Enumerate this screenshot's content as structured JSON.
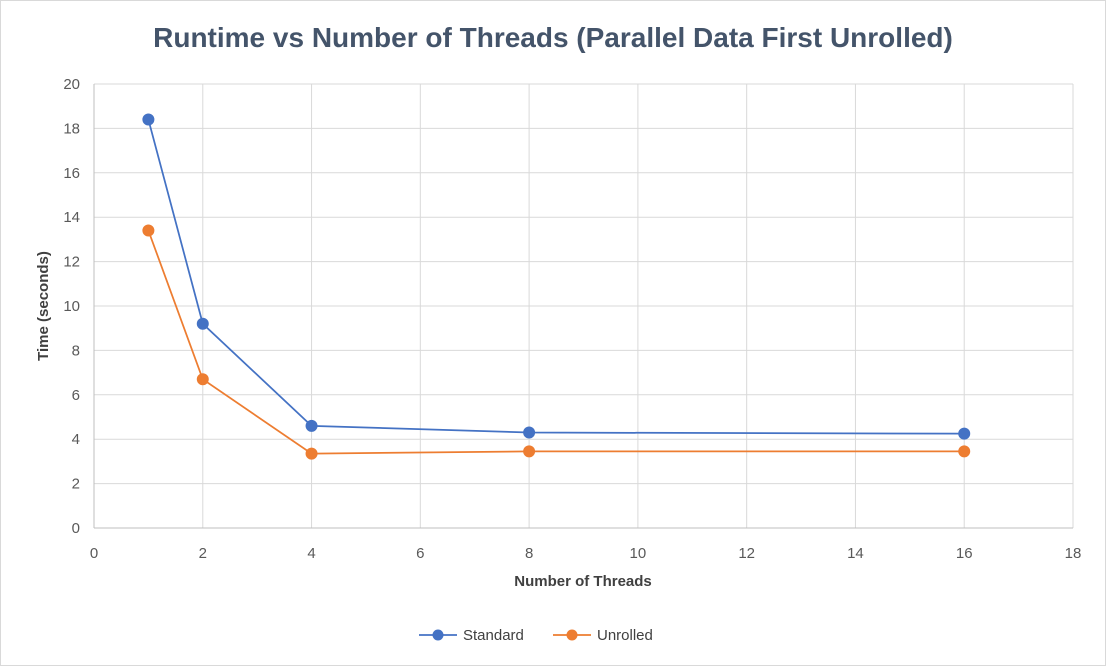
{
  "chart_data": {
    "type": "scatter",
    "title": "Runtime vs Number of Threads (Parallel Data First Unrolled)",
    "xlabel": "Number of Threads",
    "ylabel": "Time (seconds)",
    "xlim": [
      0,
      18
    ],
    "ylim": [
      0,
      20
    ],
    "x_ticks": [
      0,
      2,
      4,
      6,
      8,
      10,
      12,
      14,
      16,
      18
    ],
    "y_ticks": [
      0,
      2,
      4,
      6,
      8,
      10,
      12,
      14,
      16,
      18,
      20
    ],
    "grid": true,
    "legend_position": "bottom",
    "series": [
      {
        "name": "Standard",
        "color": "#4472c4",
        "x": [
          1,
          2,
          4,
          8,
          16
        ],
        "y": [
          18.4,
          9.2,
          4.6,
          4.3,
          4.25
        ]
      },
      {
        "name": "Unrolled",
        "color": "#ed7d31",
        "x": [
          1,
          2,
          4,
          8,
          16
        ],
        "y": [
          13.4,
          6.7,
          3.35,
          3.45,
          3.45
        ]
      }
    ]
  }
}
